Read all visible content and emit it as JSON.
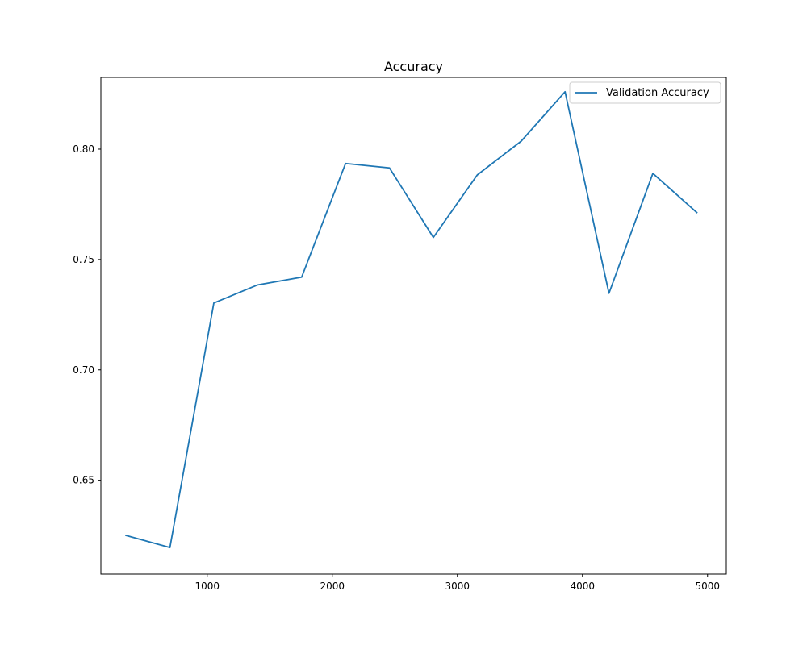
{
  "chart_data": {
    "type": "line",
    "title": "Accuracy",
    "xlabel": "",
    "ylabel": "",
    "xlim": [
      150,
      5150
    ],
    "ylim": [
      0.6075,
      0.8325
    ],
    "x_ticks": [
      1000,
      2000,
      3000,
      4000,
      5000
    ],
    "y_ticks": [
      0.65,
      0.7,
      0.75,
      0.8
    ],
    "y_tick_labels": [
      "0.65",
      "0.70",
      "0.75",
      "0.80"
    ],
    "grid": false,
    "legend": "top-right",
    "series": [
      {
        "name": "Validation Accuracy",
        "color": "#1f77b4",
        "x": [
          351,
          702,
          1053,
          1404,
          1755,
          2106,
          2457,
          2808,
          3159,
          3510,
          3861,
          4212,
          4563,
          4914
        ],
        "y": [
          0.625,
          0.6195,
          0.7303,
          0.7385,
          0.742,
          0.7935,
          0.7915,
          0.76,
          0.7883,
          0.8036,
          0.826,
          0.7347,
          0.789,
          0.7713
        ]
      }
    ]
  }
}
